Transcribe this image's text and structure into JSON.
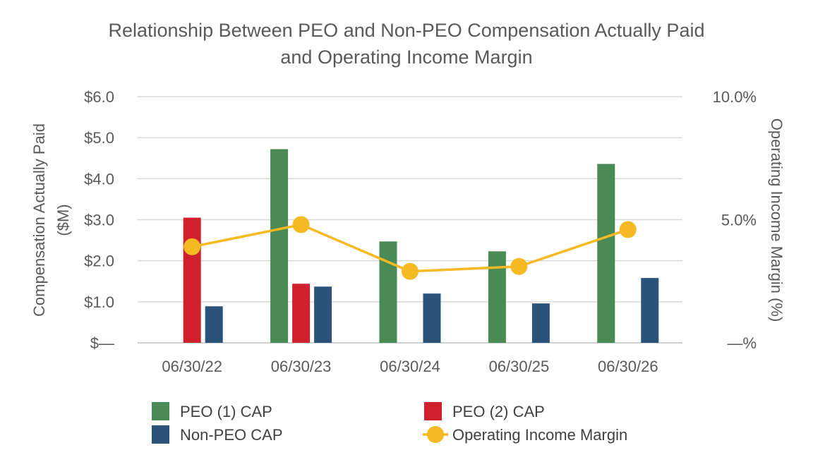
{
  "chart_data": {
    "type": "bar",
    "title": "Relationship Between PEO and Non-PEO Compensation Actually Paid",
    "subtitle": "and Operating Income Margin",
    "categories": [
      "06/30/22",
      "06/30/23",
      "06/30/24",
      "06/30/25",
      "06/30/26"
    ],
    "series": [
      {
        "name": "PEO (1) CAP",
        "type": "bar",
        "axis": "left",
        "color": "#4a8a55",
        "values": [
          null,
          4.72,
          2.47,
          2.23,
          4.36
        ]
      },
      {
        "name": "PEO (2) CAP",
        "type": "bar",
        "axis": "left",
        "color": "#d0202e",
        "values": [
          3.05,
          1.44,
          null,
          null,
          null
        ]
      },
      {
        "name": "Non-PEO CAP",
        "type": "bar",
        "axis": "left",
        "color": "#2b5279",
        "values": [
          0.89,
          1.37,
          1.2,
          0.96,
          1.58
        ]
      },
      {
        "name": "Operating Income Margin",
        "type": "line",
        "axis": "right",
        "color": "#f5b921",
        "values": [
          3.9,
          4.8,
          2.9,
          3.1,
          4.6
        ]
      }
    ],
    "ylabel": "Compensation Actually Paid",
    "ylabel2": "($M)",
    "y2label": "Operating Income Margin (%)",
    "ylim": [
      0,
      6
    ],
    "yticks": [
      "$—",
      "$1.0",
      "$2.0",
      "$3.0",
      "$4.0",
      "$5.0",
      "$6.0"
    ],
    "y2lim": [
      0,
      10
    ],
    "y2ticks": [
      "—%",
      "5.0%",
      "10.0%"
    ],
    "grid": true,
    "legend": "bottom"
  }
}
